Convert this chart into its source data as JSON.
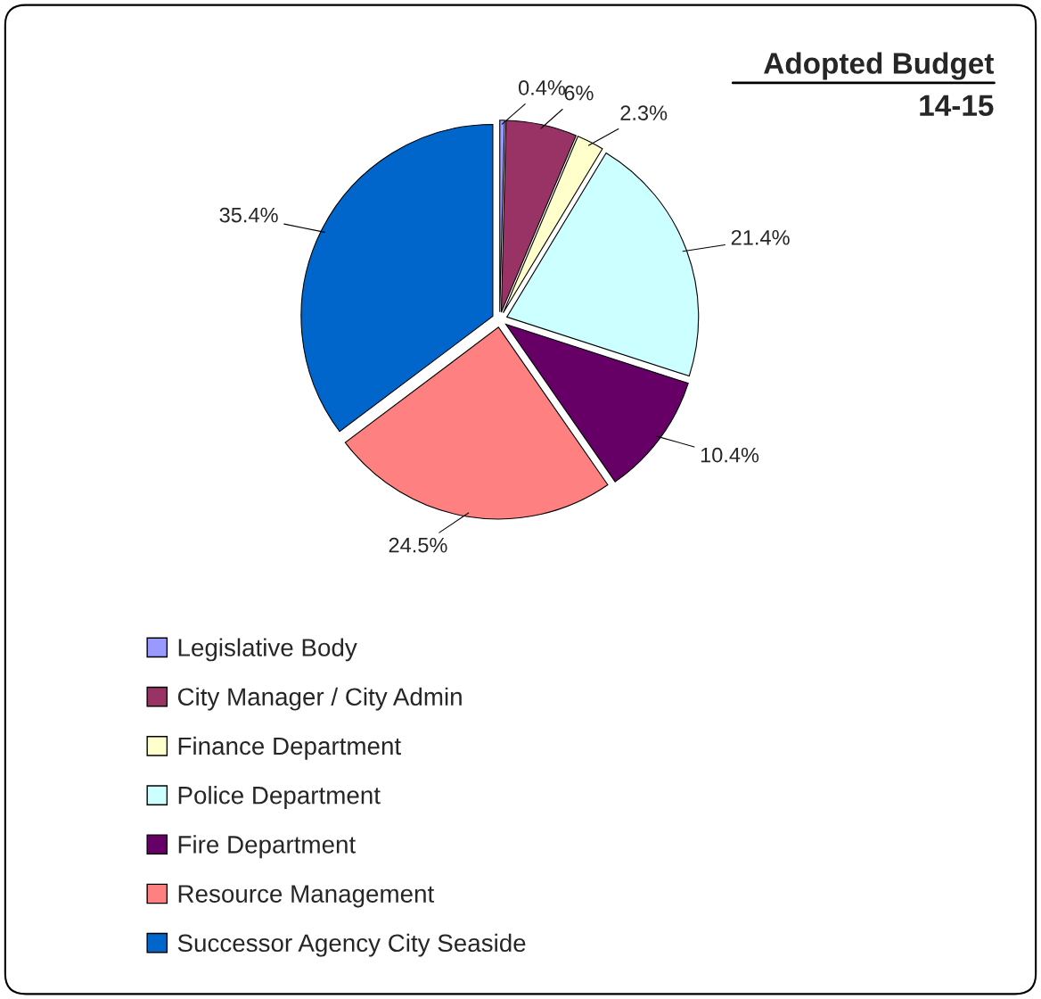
{
  "chart_data": {
    "type": "pie",
    "title": "Adopted Budget",
    "subtitle": "14-15",
    "categories": [
      "Legislative Body",
      "City Manager / City Admin",
      "Finance Department",
      "Police Department",
      "Fire Department",
      "Resource Management",
      "Successor Agency City Seaside"
    ],
    "values": [
      0.4,
      6,
      2.3,
      21.4,
      10.4,
      24.5,
      35.4
    ],
    "value_labels": [
      "0.4%",
      "6%",
      "2.3%",
      "21.4%",
      "10.4%",
      "24.5%",
      "35.4%"
    ],
    "colors": [
      "#9999ff",
      "#993366",
      "#ffffcc",
      "#ccffff",
      "#660066",
      "#ff8080",
      "#0066cc"
    ],
    "legend": "bottom left"
  }
}
